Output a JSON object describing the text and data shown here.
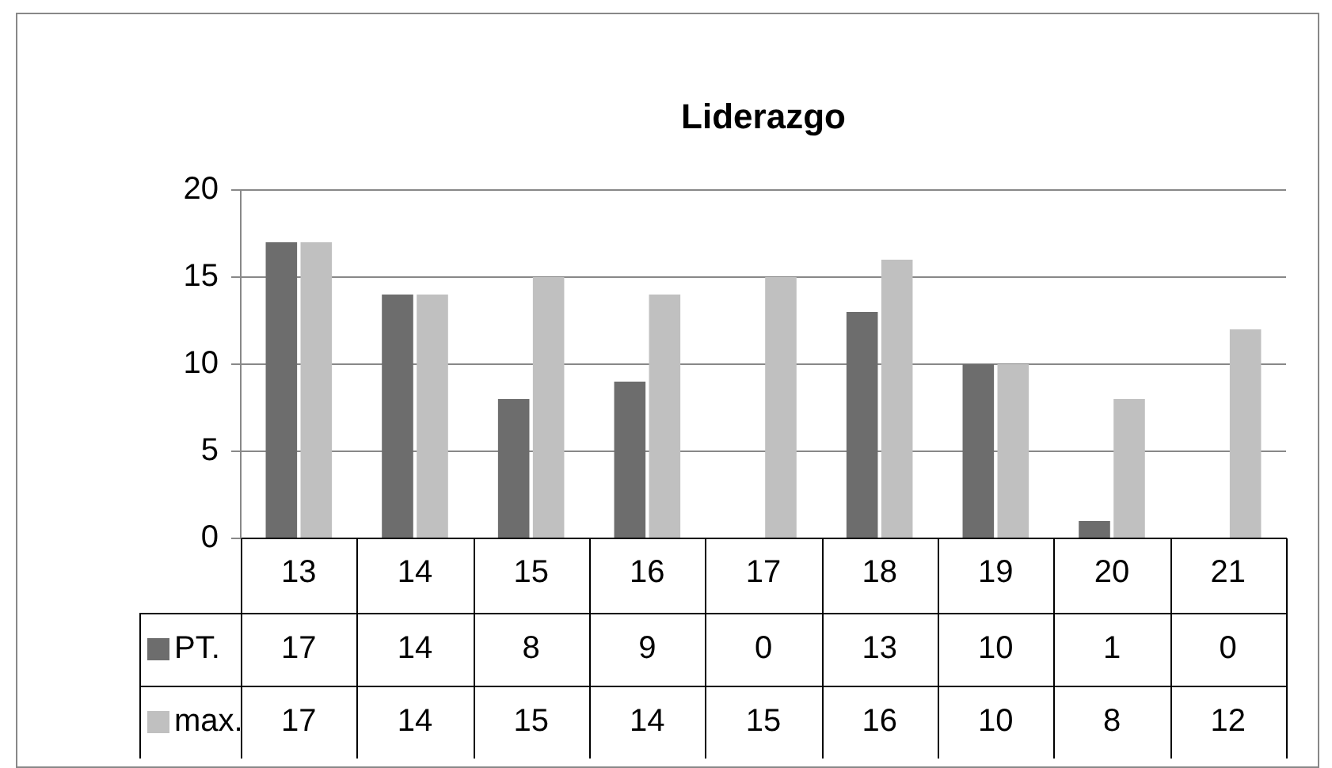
{
  "chart_data": {
    "type": "bar",
    "title": "Liderazgo",
    "categories": [
      "13",
      "14",
      "15",
      "16",
      "17",
      "18",
      "19",
      "20",
      "21"
    ],
    "series": [
      {
        "name": "PT.",
        "color": "#6d6d6d",
        "values": [
          17,
          14,
          8,
          9,
          0,
          13,
          10,
          1,
          0
        ]
      },
      {
        "name": "max.",
        "color": "#c0c0c0",
        "values": [
          17,
          14,
          15,
          14,
          15,
          16,
          10,
          8,
          12
        ]
      }
    ],
    "ylim": [
      0,
      20
    ],
    "yticks": [
      0,
      5,
      10,
      15,
      20
    ],
    "grid": "y",
    "legend": "bottom",
    "data_labels": true
  }
}
